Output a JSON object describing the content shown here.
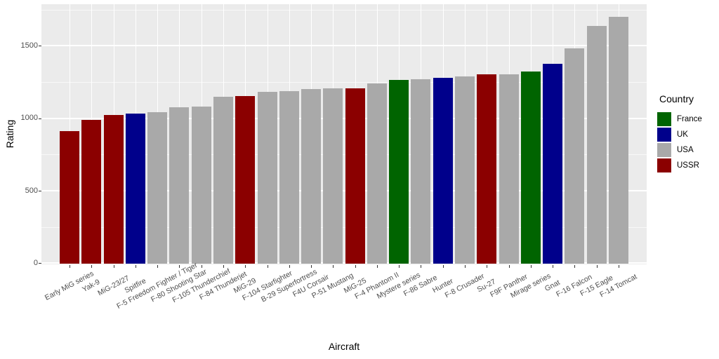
{
  "style": {
    "background": "#FFFFFF",
    "panel_background": "#EBEBEB",
    "grid_color": "#FFFFFF",
    "tick_color": "#333333",
    "tick_text_color": "#4D4D4D",
    "axis_title_color": "#000000"
  },
  "chart_data": {
    "type": "bar",
    "title": "",
    "xlabel": "Aircraft",
    "ylabel": "Rating",
    "ylim": [
      0,
      1790
    ],
    "yticks": [
      0,
      500,
      1000,
      1500
    ],
    "yticks_minor": [
      250,
      750,
      1250,
      1750
    ],
    "grid": true,
    "legend": {
      "title": "Country",
      "position": "right",
      "entries": [
        {
          "label": "France",
          "color": "#006400"
        },
        {
          "label": "UK",
          "color": "#00008B"
        },
        {
          "label": "USA",
          "color": "#A9A9A9"
        },
        {
          "label": "USSR",
          "color": "#8B0000"
        }
      ]
    },
    "country_colors": {
      "France": "#006400",
      "UK": "#00008B",
      "USA": "#A9A9A9",
      "USSR": "#8B0000"
    },
    "bars": [
      {
        "aircraft": "Early MiG series",
        "country": "USSR",
        "rating": 910
      },
      {
        "aircraft": "Yak-9",
        "country": "USSR",
        "rating": 990
      },
      {
        "aircraft": "MiG-23/27",
        "country": "USSR",
        "rating": 1025
      },
      {
        "aircraft": "Spitfire",
        "country": "UK",
        "rating": 1035
      },
      {
        "aircraft": "F-5 Freedom Fighter / Tiger",
        "country": "USA",
        "rating": 1045
      },
      {
        "aircraft": "F-80 Shooting Star",
        "country": "USA",
        "rating": 1075
      },
      {
        "aircraft": "F-105 Thunderchief",
        "country": "USA",
        "rating": 1080
      },
      {
        "aircraft": "F-84 Thunderjet",
        "country": "USA",
        "rating": 1150
      },
      {
        "aircraft": "MiG-29",
        "country": "USSR",
        "rating": 1155
      },
      {
        "aircraft": "F-104 Starfighter",
        "country": "USA",
        "rating": 1185
      },
      {
        "aircraft": "B-29 Superfortress",
        "country": "USA",
        "rating": 1190
      },
      {
        "aircraft": "F4U Corsair",
        "country": "USA",
        "rating": 1200
      },
      {
        "aircraft": "P-51 Mustang",
        "country": "USA",
        "rating": 1205
      },
      {
        "aircraft": "MiG-25",
        "country": "USSR",
        "rating": 1205
      },
      {
        "aircraft": "F-4 Phantom II",
        "country": "USA",
        "rating": 1240
      },
      {
        "aircraft": "Mystere series",
        "country": "France",
        "rating": 1265
      },
      {
        "aircraft": "F-86 Sabre",
        "country": "USA",
        "rating": 1270
      },
      {
        "aircraft": "Hunter",
        "country": "UK",
        "rating": 1280
      },
      {
        "aircraft": "F-8 Crusader",
        "country": "USA",
        "rating": 1290
      },
      {
        "aircraft": "Su-27",
        "country": "USSR",
        "rating": 1305
      },
      {
        "aircraft": "F9F Panther",
        "country": "USA",
        "rating": 1305
      },
      {
        "aircraft": "Mirage series",
        "country": "France",
        "rating": 1325
      },
      {
        "aircraft": "Gnat",
        "country": "UK",
        "rating": 1375
      },
      {
        "aircraft": "F-16 Falcon",
        "country": "USA",
        "rating": 1485
      },
      {
        "aircraft": "F-15 Eagle",
        "country": "USA",
        "rating": 1640
      },
      {
        "aircraft": "F-14 Tomcat",
        "country": "USA",
        "rating": 1700
      }
    ]
  }
}
